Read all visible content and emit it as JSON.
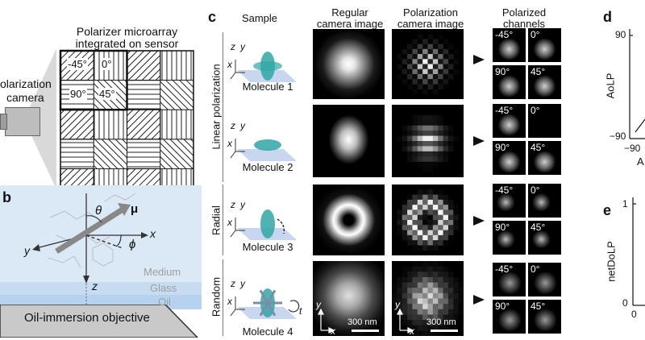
{
  "panel_labels": {
    "b": "b",
    "c": "c",
    "d": "d",
    "e": "e"
  },
  "panel_a": {
    "camera_label_line1": "olarization",
    "camera_label_line2": "camera",
    "array_title_line1": "Polarizer microarray",
    "array_title_line2": "integrated on sensor",
    "angles": [
      "-45°",
      "0°",
      "90°",
      "45°"
    ]
  },
  "panel_b": {
    "theta": "θ",
    "mu": "μ",
    "phi": "ϕ",
    "x": "x",
    "y": "y",
    "z": "z",
    "medium": "Medium",
    "glass": "Glass",
    "oil": "Oil",
    "objective": "Oil-immersion objective"
  },
  "panel_c": {
    "col_sample": "Sample",
    "col_regular_line1": "Regular",
    "col_regular_line2": "camera image",
    "col_polar_line1": "Polarization",
    "col_polar_line2": "camera image",
    "col_channels_line1": "Polarized",
    "col_channels_line2": "channels",
    "group_linear": "Linear polarization",
    "group_radial": "Radial",
    "group_random": "Random",
    "molecules": [
      "Molecule 1",
      "Molecule 2",
      "Molecule 3",
      "Molecule 4"
    ],
    "axis_z": "z",
    "axis_y": "y",
    "axis_x": "x",
    "t": "t",
    "channel_labels": [
      "-45°",
      "0°",
      "90°",
      "45°"
    ],
    "scale_bar": "300 nm"
  },
  "panel_d": {
    "ylabel": "AoLP",
    "ytick_top": "90",
    "ytick_bottom": "−90",
    "xtick_left": "−90",
    "xlabel_partial": "A"
  },
  "panel_e": {
    "ylabel": "netDoLP",
    "ytick_top": "1",
    "ytick_bottom": "0",
    "xtick_left": "0"
  }
}
